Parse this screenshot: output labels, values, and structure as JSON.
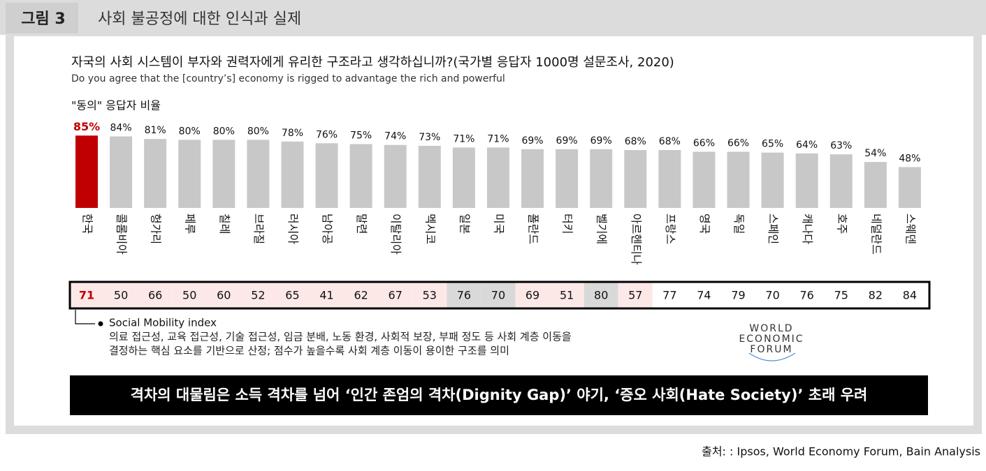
{
  "header": {
    "label": "그림 3",
    "title": "사회 불공정에 대한 인식과 실제"
  },
  "chart_data": {
    "type": "bar",
    "title": "자국의 사회 시스템이 부자와 권력자에게 유리한 구조라고 생각하십니까?(국가별 응답자 1000명 설문조사, 2020)",
    "subtitle": "Do you agree that the [country’s] economy is rigged to advantage the rich and powerful",
    "y_label": "\"동의\" 응답자 비율",
    "categories": [
      "한국",
      "콜롬비아",
      "헝가리",
      "페루",
      "칠레",
      "브라질",
      "러시아",
      "남아공",
      "말련",
      "이탈리아",
      "멕시코",
      "일본",
      "미국",
      "폴란드",
      "터키",
      "벨기에",
      "아르헨티나",
      "프랑스",
      "영국",
      "독일",
      "스페인",
      "캐나다",
      "호주",
      "네덜란드",
      "스웨덴"
    ],
    "values": [
      85,
      84,
      81,
      80,
      80,
      80,
      78,
      76,
      75,
      74,
      73,
      71,
      71,
      69,
      69,
      69,
      68,
      68,
      66,
      66,
      65,
      64,
      63,
      54,
      48
    ],
    "value_labels": [
      "85%",
      "84%",
      "81%",
      "80%",
      "80%",
      "80%",
      "78%",
      "76%",
      "75%",
      "74%",
      "73%",
      "71%",
      "71%",
      "69%",
      "69%",
      "69%",
      "68%",
      "68%",
      "66%",
      "66%",
      "65%",
      "64%",
      "63%",
      "54%",
      "48%"
    ],
    "colors": [
      "#c00000",
      "#c8c8c8",
      "#c8c8c8",
      "#c8c8c8",
      "#c8c8c8",
      "#c8c8c8",
      "#c8c8c8",
      "#c8c8c8",
      "#c8c8c8",
      "#c8c8c8",
      "#c8c8c8",
      "#c8c8c8",
      "#c8c8c8",
      "#c8c8c8",
      "#c8c8c8",
      "#c8c8c8",
      "#c8c8c8",
      "#c8c8c8",
      "#c8c8c8",
      "#c8c8c8",
      "#c8c8c8",
      "#c8c8c8",
      "#c8c8c8",
      "#c8c8c8",
      "#c8c8c8"
    ],
    "ylim": [
      0,
      100
    ]
  },
  "mobility_index": {
    "name": "Social Mobility index",
    "values": [
      71,
      50,
      66,
      50,
      60,
      52,
      65,
      41,
      62,
      67,
      53,
      76,
      70,
      69,
      51,
      80,
      57,
      77,
      74,
      79,
      70,
      76,
      75,
      82,
      84
    ],
    "cell_colors": [
      "#fde8e8",
      "#fde8e8",
      "#fde8e8",
      "#fde8e8",
      "#fde8e8",
      "#fde8e8",
      "#fde8e8",
      "#fde8e8",
      "#fde8e8",
      "#fde8e8",
      "#fde8e8",
      "#d9d9d9",
      "#d9d9d9",
      "#fde8e8",
      "#fde8e8",
      "#d9d9d9",
      "#fde8e8",
      "#ffffff",
      "#ffffff",
      "#ffffff",
      "#ffffff",
      "#ffffff",
      "#ffffff",
      "#ffffff",
      "#ffffff"
    ],
    "description": [
      "의료 접근성, 교육 접근성, 기술 접근성, 임금 분배, 노동 환경, 사회적 보장, 부패 정도 등 사회 계층 이동을",
      "결정하는 핵심 요소를 기반으로 산정; 점수가 높을수록 사회 계층 이동이 용이한 구조를 의미"
    ]
  },
  "logo": [
    "WORLD",
    "ECONOMIC",
    "FORUM"
  ],
  "banner": "격차의 대물림은 소득 격차를 넘어 ‘인간 존엄의 격차(Dignity Gap)’ 야기, ‘증오 사회(Hate Society)’ 초래 우려",
  "source": "출처: : Ipsos, World Economy Forum, Bain Analysis"
}
